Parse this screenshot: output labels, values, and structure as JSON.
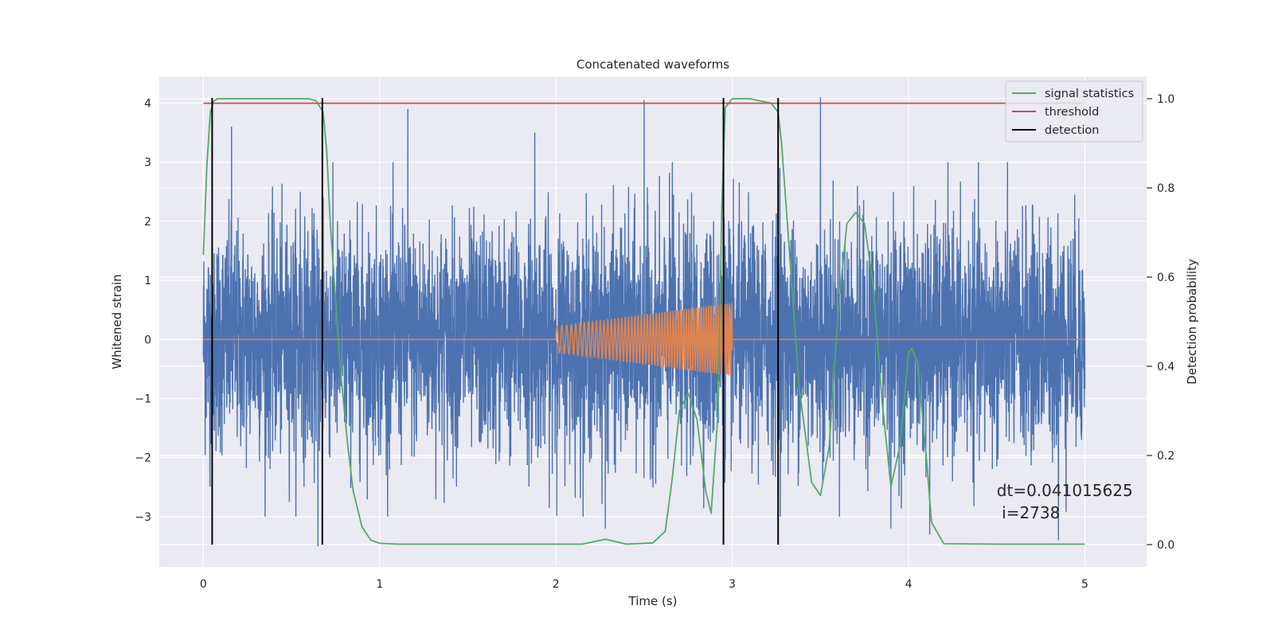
{
  "chart_data": {
    "type": "line",
    "title": "Concatenated waveforms",
    "xlabel": "Time (s)",
    "ylabel": "Whitened strain",
    "y2label": "Detection probability",
    "xlim": [
      -0.25,
      5.35
    ],
    "ylim": [
      -3.85,
      4.45
    ],
    "y2lim": [
      -0.05,
      1.05
    ],
    "x_ticks": [
      0,
      1,
      2,
      3,
      4,
      5
    ],
    "y_ticks": [
      -3,
      -2,
      -1,
      0,
      1,
      2,
      3,
      4
    ],
    "y2_ticks": [
      0.0,
      0.2,
      0.4,
      0.6,
      0.8,
      1.0
    ],
    "x_tick_labels": [
      "0",
      "1",
      "2",
      "3",
      "4",
      "5"
    ],
    "y_tick_labels": [
      "−3",
      "−2",
      "−1",
      "0",
      "1",
      "2",
      "3",
      "4"
    ],
    "y2_tick_labels": [
      "0.0",
      "0.2",
      "0.4",
      "0.6",
      "0.8",
      "1.0"
    ],
    "grid": true,
    "legend_position": "top-right",
    "noise_series": {
      "name": "",
      "color": "#4c72b0",
      "x_range": [
        0,
        5
      ],
      "typical_amplitude": 1.0,
      "peak_values": [
        {
          "x": 0.05,
          "y": 2.3
        },
        {
          "x": 0.16,
          "y": 3.6
        },
        {
          "x": 0.55,
          "y": 2.5
        },
        {
          "x": 0.65,
          "y": -3.5
        },
        {
          "x": 0.68,
          "y": 2.4
        },
        {
          "x": 1.16,
          "y": 3.9
        },
        {
          "x": 1.88,
          "y": 3.5
        },
        {
          "x": 2.28,
          "y": -3.2
        },
        {
          "x": 2.5,
          "y": 4.05
        },
        {
          "x": 2.66,
          "y": 3.0
        },
        {
          "x": 2.95,
          "y": 3.4
        },
        {
          "x": 3.27,
          "y": 2.9
        },
        {
          "x": 3.5,
          "y": 4.1
        },
        {
          "x": 3.9,
          "y": -3.2
        },
        {
          "x": 4.12,
          "y": -3.3
        },
        {
          "x": 4.85,
          "y": -3.4
        }
      ]
    },
    "chirp_series": {
      "name": "",
      "color": "#dd8452",
      "x_range": [
        2.0,
        3.0
      ],
      "amplitude_start": 0.22,
      "amplitude_end": 0.62,
      "baseline": 0
    },
    "series": [
      {
        "name": "signal statistics",
        "color": "#55a868",
        "axis": "right",
        "x": [
          0,
          0.02,
          0.04,
          0.06,
          0.08,
          0.1,
          0.2,
          0.4,
          0.6,
          0.64,
          0.68,
          0.7,
          0.72,
          0.75,
          0.78,
          0.82,
          0.85,
          0.9,
          0.95,
          1.0,
          1.1,
          1.5,
          2.0,
          2.15,
          2.28,
          2.4,
          2.55,
          2.62,
          2.66,
          2.7,
          2.75,
          2.8,
          2.85,
          2.88,
          2.92,
          2.94,
          2.96,
          3.0,
          3.1,
          3.22,
          3.26,
          3.28,
          3.32,
          3.38,
          3.45,
          3.5,
          3.55,
          3.6,
          3.65,
          3.7,
          3.75,
          3.8,
          3.85,
          3.9,
          3.95,
          4.0,
          4.02,
          4.05,
          4.1,
          4.13,
          4.2,
          4.5,
          5.0
        ],
        "values": [
          0.65,
          0.85,
          0.97,
          0.995,
          1.0,
          1.0,
          1.0,
          1.0,
          1.0,
          0.995,
          0.97,
          0.88,
          0.72,
          0.55,
          0.38,
          0.22,
          0.12,
          0.04,
          0.01,
          0.003,
          0.001,
          0.001,
          0.001,
          0.001,
          0.012,
          0.001,
          0.004,
          0.03,
          0.15,
          0.3,
          0.34,
          0.28,
          0.12,
          0.07,
          0.3,
          0.75,
          0.98,
          1.0,
          1.0,
          0.99,
          0.97,
          0.9,
          0.68,
          0.35,
          0.14,
          0.11,
          0.22,
          0.52,
          0.72,
          0.745,
          0.72,
          0.58,
          0.32,
          0.13,
          0.22,
          0.43,
          0.44,
          0.41,
          0.2,
          0.05,
          0.002,
          0.001,
          0.001
        ]
      },
      {
        "name": "threshold",
        "color": "#c44e52",
        "axis": "right",
        "x": [
          0,
          5
        ],
        "values": [
          0.99,
          0.99
        ]
      },
      {
        "name": "detection",
        "color": "#000000",
        "axis": "right",
        "x": [
          0.05,
          0.675,
          2.95,
          3.26
        ],
        "values": [
          1.0,
          1.0,
          1.0,
          1.0
        ]
      }
    ],
    "annotation": {
      "line1": "dt=0.041015625",
      "line2": " i=2738",
      "x": 4.5,
      "y": -2.65
    }
  }
}
